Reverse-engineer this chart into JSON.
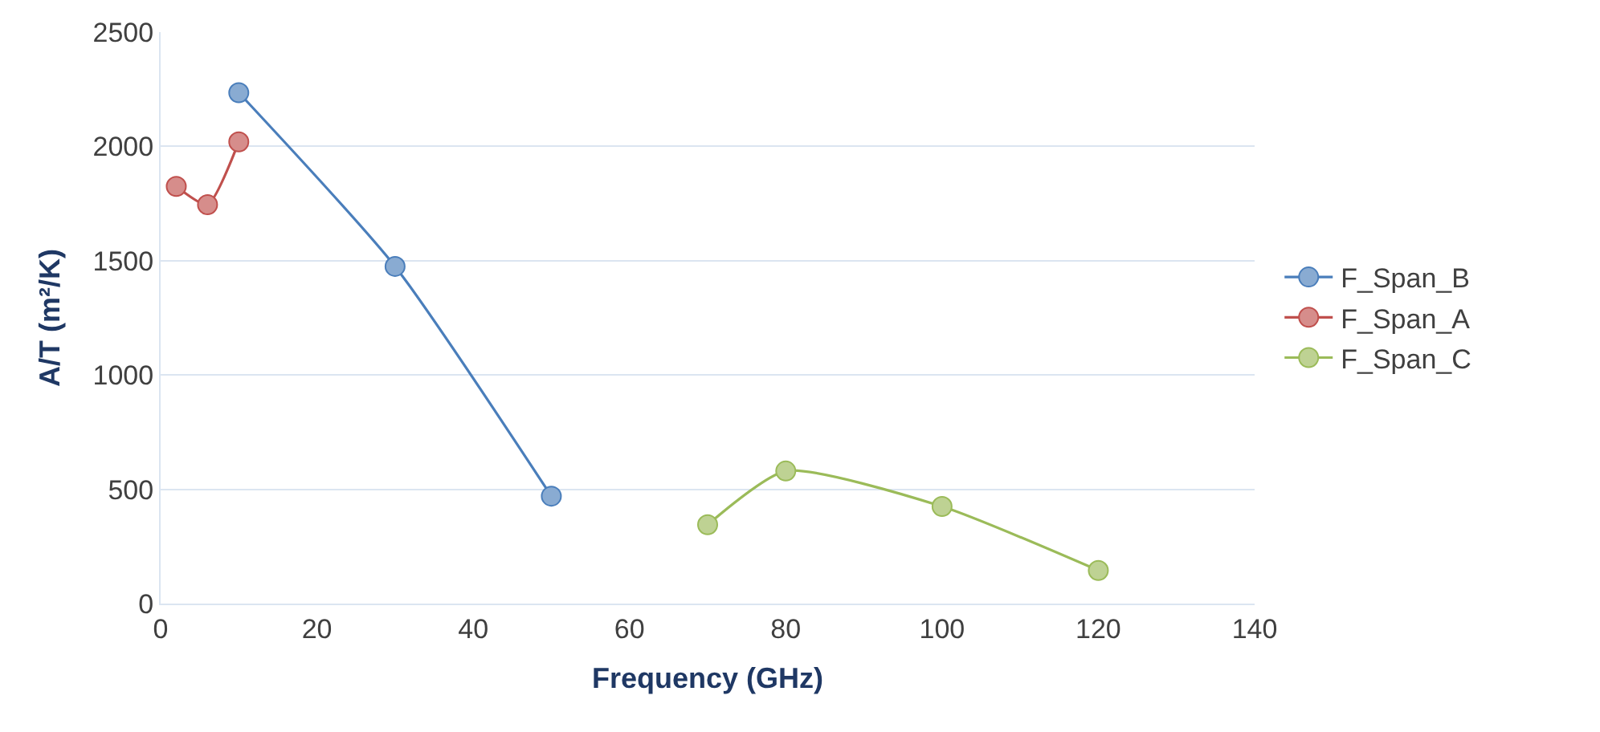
{
  "chart_data": {
    "type": "line",
    "xlabel": "Frequency (GHz)",
    "ylabel": "A/T (m²/K)",
    "xlim": [
      0,
      140
    ],
    "xticks": [
      0,
      20,
      40,
      60,
      80,
      100,
      120,
      140
    ],
    "ylim": [
      0,
      2500
    ],
    "yticks": [
      0,
      500,
      1000,
      1500,
      2000,
      2500
    ],
    "grid": "y",
    "legend": "right",
    "marker": "circle",
    "series": [
      {
        "name": "F_Span_B",
        "color": "#4a7ebb",
        "x": [
          10,
          30,
          50
        ],
        "values": [
          2235,
          1475,
          470
        ]
      },
      {
        "name": "F_Span_A",
        "color": "#c0504d",
        "x": [
          2,
          6,
          10
        ],
        "values": [
          1825,
          1745,
          2020
        ]
      },
      {
        "name": "F_Span_C",
        "color": "#9bbb59",
        "x": [
          70,
          80,
          100,
          120
        ],
        "values": [
          345,
          580,
          425,
          145
        ]
      }
    ]
  }
}
